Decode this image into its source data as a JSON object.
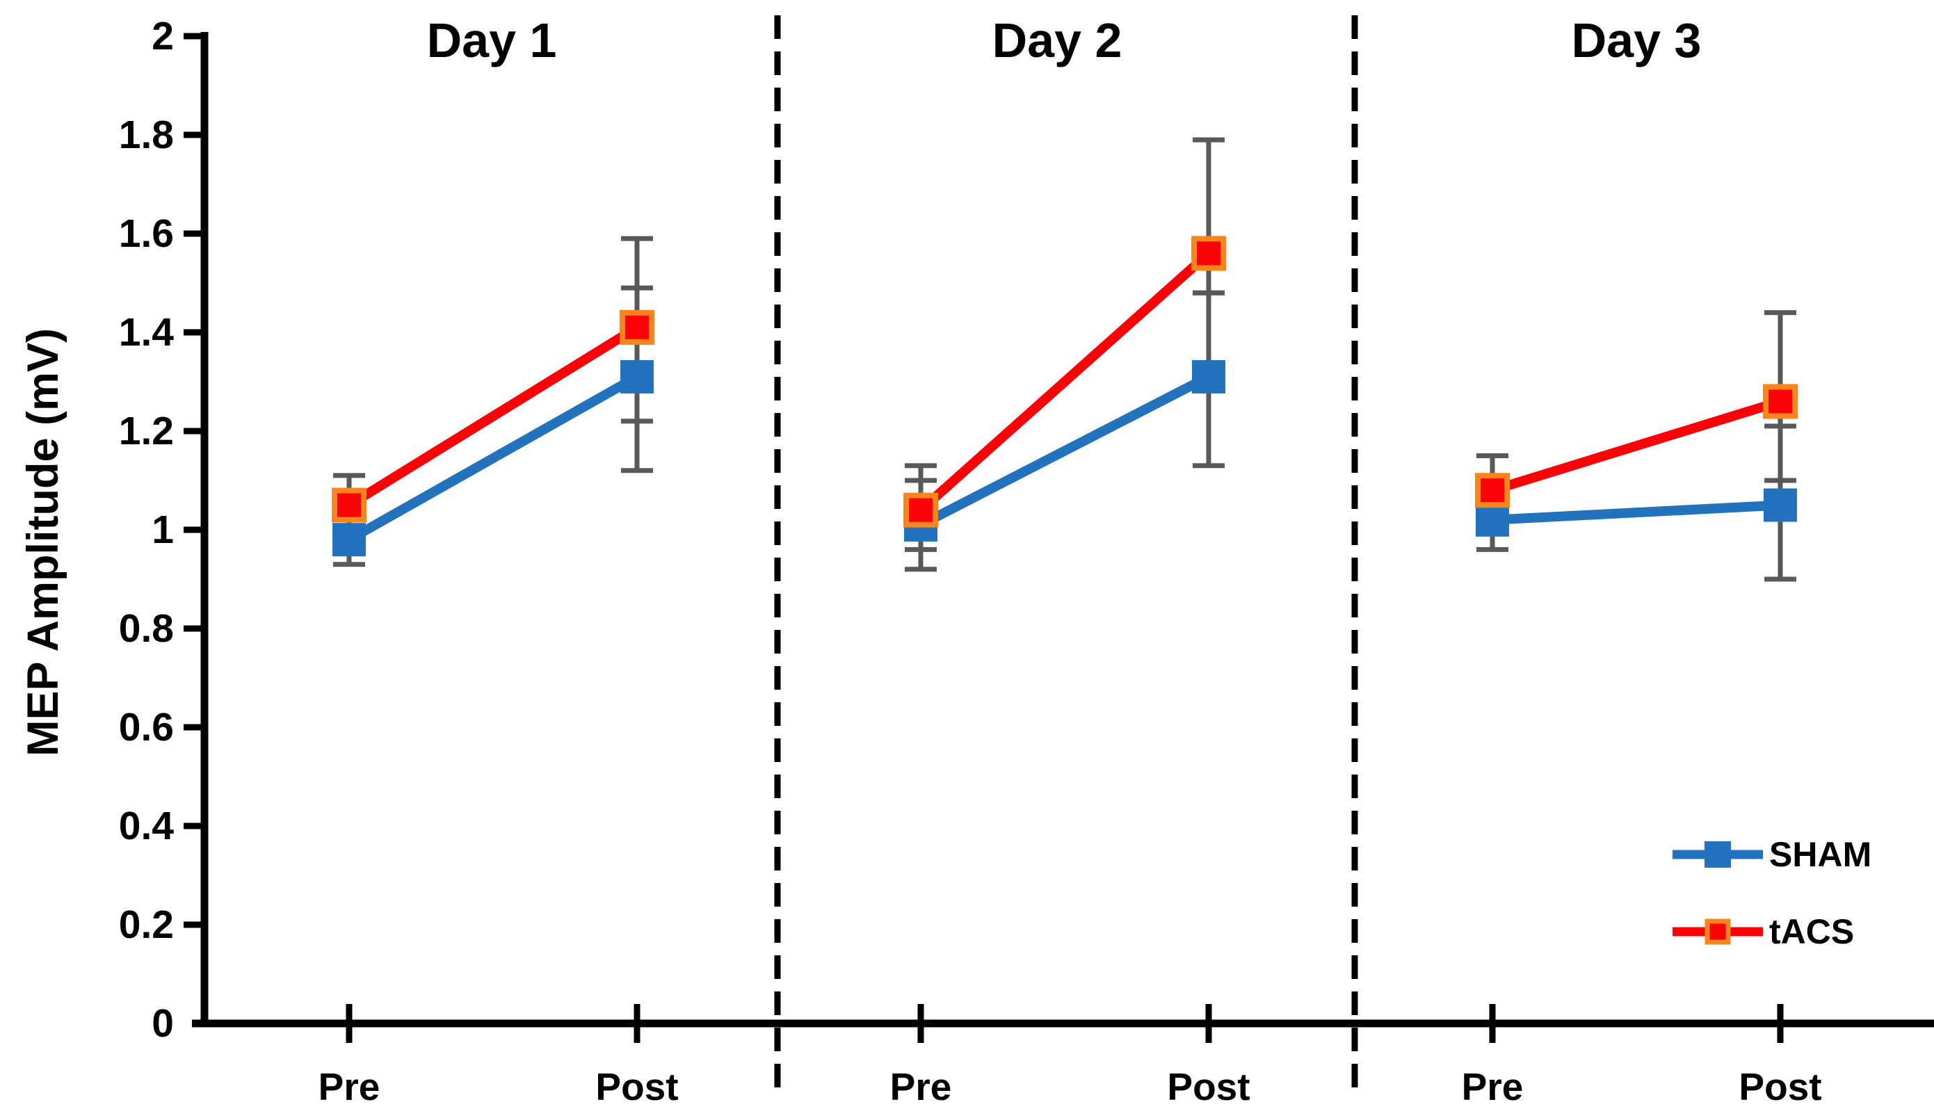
{
  "figure": {
    "description": "Line chart of MEP amplitude pre/post stimulation across three days for SHAM and tACS groups",
    "background": "#ffffff"
  },
  "chart_data": {
    "type": "line",
    "title": "",
    "ylabel": "MEP Amplitude (mV)",
    "xlabel": "",
    "ylim": [
      0,
      2
    ],
    "yticks": [
      0,
      0.2,
      0.4,
      0.6,
      0.8,
      1,
      1.2,
      1.4,
      1.6,
      1.8,
      2
    ],
    "ytick_labels": [
      "0",
      "0.2",
      "0.4",
      "0.6",
      "0.8",
      "1",
      "1.2",
      "1.4",
      "1.6",
      "1.8",
      "2"
    ],
    "grid": false,
    "panels": [
      {
        "label": "Day 1",
        "categories": [
          "Pre",
          "Post"
        ]
      },
      {
        "label": "Day 2",
        "categories": [
          "Pre",
          "Post"
        ]
      },
      {
        "label": "Day 3",
        "categories": [
          "Pre",
          "Post"
        ]
      }
    ],
    "series": [
      {
        "name": "SHAM",
        "color": "#2272BE",
        "marker": "square",
        "values": [
          0.98,
          1.31,
          1.01,
          1.31,
          1.02,
          1.05
        ],
        "err_lo": [
          0.93,
          1.12,
          0.92,
          1.13,
          0.96,
          0.9
        ],
        "err_hi": [
          1.05,
          1.49,
          1.1,
          1.48,
          1.08,
          1.21
        ]
      },
      {
        "name": "tACS",
        "color": "#FB0207",
        "marker": "square",
        "marker_border": "#F9851D",
        "values": [
          1.05,
          1.41,
          1.04,
          1.56,
          1.08,
          1.26
        ],
        "err_lo": [
          0.99,
          1.22,
          0.96,
          1.48,
          1.02,
          1.1
        ],
        "err_hi": [
          1.11,
          1.59,
          1.13,
          1.79,
          1.15,
          1.44
        ]
      }
    ],
    "error_bar_color": "#595959",
    "axis_color": "#000000",
    "separator_style": "dashed",
    "legend": {
      "position": "bottom-right",
      "entries": [
        "SHAM",
        "tACS"
      ]
    }
  }
}
